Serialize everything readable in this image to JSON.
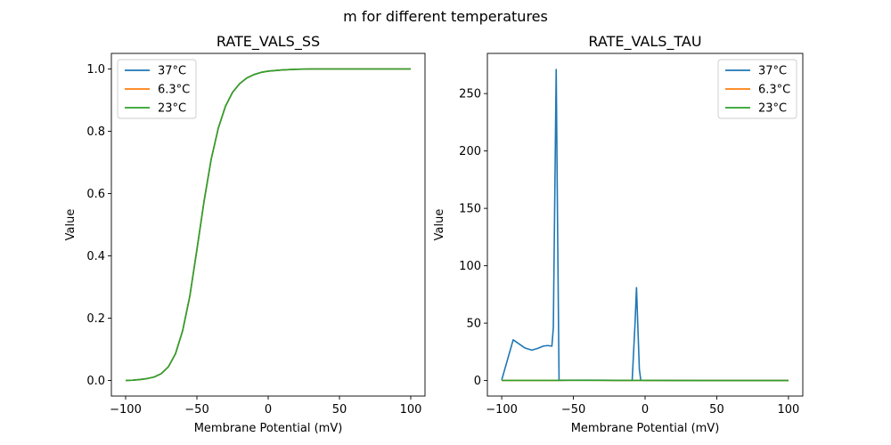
{
  "figure": {
    "suptitle": "m for different temperatures"
  },
  "chart_data": [
    {
      "type": "line",
      "title": "RATE_VALS_SS",
      "xlabel": "Membrane Potential (mV)",
      "ylabel": "Value",
      "xlim": [
        -110,
        110
      ],
      "ylim": [
        -0.05,
        1.05
      ],
      "xticks": [
        -100,
        -50,
        0,
        50,
        100
      ],
      "xtick_labels": [
        "−100",
        "−50",
        "0",
        "50",
        "100"
      ],
      "yticks": [
        0.0,
        0.2,
        0.4,
        0.6,
        0.8,
        1.0
      ],
      "ytick_labels": [
        "0.0",
        "0.2",
        "0.4",
        "0.6",
        "0.8",
        "1.0"
      ],
      "grid": false,
      "legend_position": "upper-left",
      "series": [
        {
          "name": "37°C",
          "color": "#1f77b4",
          "x": [
            -100,
            -95,
            -90,
            -85,
            -80,
            -75,
            -70,
            -65,
            -60,
            -55,
            -50,
            -45,
            -40,
            -35,
            -30,
            -25,
            -20,
            -15,
            -10,
            -5,
            0,
            10,
            20,
            30,
            40,
            50,
            60,
            70,
            80,
            90,
            100
          ],
          "y": [
            0.0,
            0.001,
            0.003,
            0.006,
            0.011,
            0.022,
            0.044,
            0.086,
            0.16,
            0.27,
            0.42,
            0.575,
            0.71,
            0.81,
            0.88,
            0.925,
            0.953,
            0.971,
            0.982,
            0.989,
            0.993,
            0.997,
            0.999,
            1.0,
            1.0,
            1.0,
            1.0,
            1.0,
            1.0,
            1.0,
            1.0
          ]
        },
        {
          "name": "6.3°C",
          "color": "#ff7f0e",
          "x": [
            -100,
            -95,
            -90,
            -85,
            -80,
            -75,
            -70,
            -65,
            -60,
            -55,
            -50,
            -45,
            -40,
            -35,
            -30,
            -25,
            -20,
            -15,
            -10,
            -5,
            0,
            10,
            20,
            30,
            40,
            50,
            60,
            70,
            80,
            90,
            100
          ],
          "y": [
            0.0,
            0.001,
            0.003,
            0.006,
            0.011,
            0.022,
            0.044,
            0.086,
            0.16,
            0.27,
            0.42,
            0.575,
            0.71,
            0.81,
            0.88,
            0.925,
            0.953,
            0.971,
            0.982,
            0.989,
            0.993,
            0.997,
            0.999,
            1.0,
            1.0,
            1.0,
            1.0,
            1.0,
            1.0,
            1.0,
            1.0
          ]
        },
        {
          "name": "23°C",
          "color": "#2ca02c",
          "x": [
            -100,
            -95,
            -90,
            -85,
            -80,
            -75,
            -70,
            -65,
            -60,
            -55,
            -50,
            -45,
            -40,
            -35,
            -30,
            -25,
            -20,
            -15,
            -10,
            -5,
            0,
            10,
            20,
            30,
            40,
            50,
            60,
            70,
            80,
            90,
            100
          ],
          "y": [
            0.0,
            0.001,
            0.003,
            0.006,
            0.011,
            0.022,
            0.044,
            0.086,
            0.16,
            0.27,
            0.42,
            0.575,
            0.71,
            0.81,
            0.88,
            0.925,
            0.953,
            0.971,
            0.982,
            0.989,
            0.993,
            0.997,
            0.999,
            1.0,
            1.0,
            1.0,
            1.0,
            1.0,
            1.0,
            1.0,
            1.0
          ]
        }
      ]
    },
    {
      "type": "line",
      "title": "RATE_VALS_TAU",
      "xlabel": "Membrane Potential (mV)",
      "ylabel": "Value",
      "xlim": [
        -110,
        110
      ],
      "ylim": [
        -13.5,
        285
      ],
      "xticks": [
        -100,
        -50,
        0,
        50,
        100
      ],
      "xtick_labels": [
        "−100",
        "−50",
        "0",
        "50",
        "100"
      ],
      "yticks": [
        0,
        50,
        100,
        150,
        200,
        250
      ],
      "ytick_labels": [
        "0",
        "50",
        "100",
        "150",
        "200",
        "250"
      ],
      "grid": false,
      "legend_position": "upper-right",
      "series": [
        {
          "name": "37°C",
          "color": "#1f77b4",
          "x": [
            -100,
            -92,
            -84,
            -79,
            -75,
            -71,
            -68,
            -65,
            -64,
            -62,
            -61,
            -60,
            -58,
            -50,
            -40,
            -30,
            -20,
            -10,
            -9,
            -7,
            -6,
            -4,
            -3,
            0,
            20,
            40,
            60,
            80,
            100
          ],
          "y": [
            0.5,
            35.5,
            28.5,
            26.5,
            28,
            30,
            30.5,
            30,
            46,
            271,
            130,
            0.3,
            0.3,
            0.3,
            0.3,
            0.3,
            0.2,
            0.2,
            0.2,
            50,
            81,
            10,
            0.3,
            0.2,
            0.2,
            0.1,
            0.1,
            0.1,
            0.1
          ]
        },
        {
          "name": "6.3°C",
          "color": "#ff7f0e",
          "x": [
            -100,
            -80,
            -60,
            -40,
            -20,
            0,
            20,
            40,
            60,
            80,
            100
          ],
          "y": [
            0.1,
            0.1,
            0.15,
            0.2,
            0.15,
            0.1,
            0.05,
            0.05,
            0.03,
            0.02,
            0.02
          ]
        },
        {
          "name": "23°C",
          "color": "#2ca02c",
          "x": [
            -100,
            -80,
            -60,
            -40,
            -20,
            0,
            20,
            40,
            60,
            80,
            100
          ],
          "y": [
            0.1,
            0.1,
            0.15,
            0.2,
            0.15,
            0.1,
            0.05,
            0.05,
            0.03,
            0.02,
            0.02
          ]
        }
      ]
    }
  ]
}
